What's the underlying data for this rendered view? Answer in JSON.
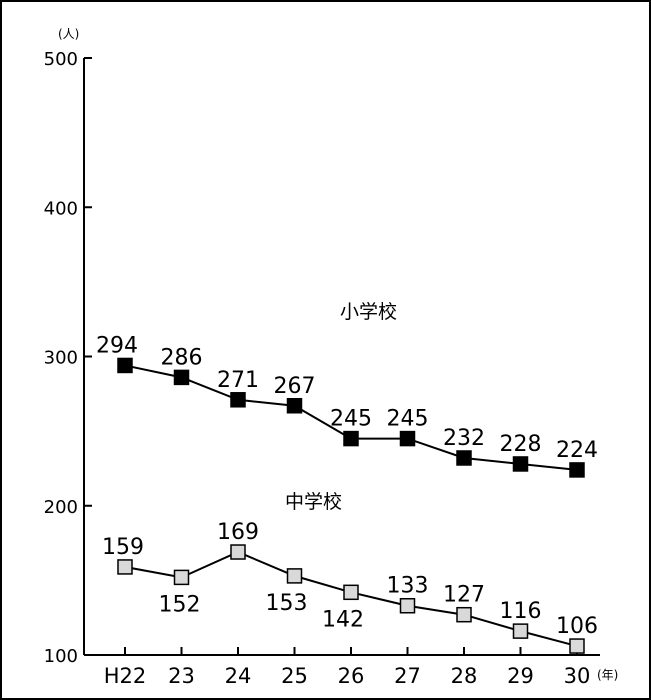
{
  "chart_data": {
    "type": "line",
    "categories": [
      "H22",
      "23",
      "24",
      "25",
      "26",
      "27",
      "28",
      "29",
      "30"
    ],
    "y_unit": "(人)",
    "x_unit": "(年)",
    "ylim": [
      100,
      500
    ],
    "yticks": [
      100,
      200,
      300,
      400,
      500
    ],
    "grid": false,
    "series": [
      {
        "name": "小学校",
        "values": [
          294,
          286,
          271,
          267,
          245,
          245,
          232,
          228,
          224
        ],
        "marker": "filled-square",
        "color": "#000000"
      },
      {
        "name": "中学校",
        "values": [
          159,
          152,
          169,
          153,
          142,
          133,
          127,
          116,
          106
        ],
        "marker": "open-square",
        "color": "#d9d9d9"
      }
    ]
  }
}
